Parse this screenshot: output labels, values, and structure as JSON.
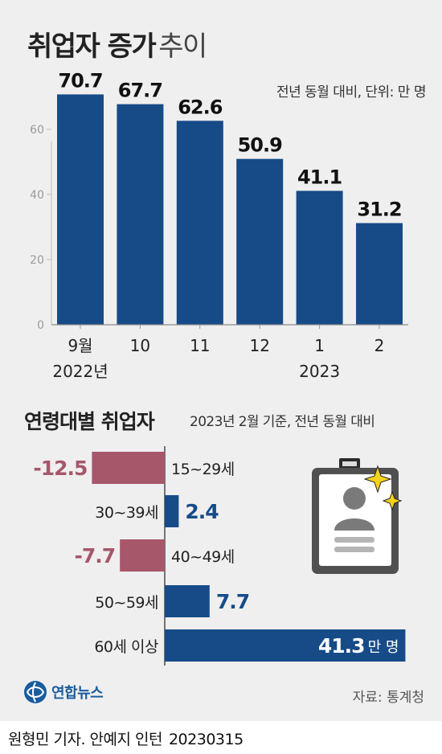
{
  "header": {
    "title_bold": "취업자 증가",
    "title_light": "추이",
    "unit_note": "전년 동월 대비, 단위: 만 명"
  },
  "chart_data": [
    {
      "type": "bar",
      "categories": [
        "9월",
        "10",
        "11",
        "12",
        "1",
        "2"
      ],
      "year_labels": [
        {
          "under": 0,
          "text": "2022년"
        },
        {
          "under": 4,
          "text": "2023"
        }
      ],
      "values": [
        70.7,
        67.7,
        62.6,
        50.9,
        41.1,
        31.2
      ],
      "value_labels": [
        "70.7",
        "67.7",
        "62.6",
        "50.9",
        "41.1",
        "31.2"
      ],
      "yticks": [
        0,
        20,
        40,
        60
      ],
      "ylim": [
        0,
        75
      ],
      "color": "#174b88",
      "grid": false
    },
    {
      "type": "bar",
      "orientation": "horizontal",
      "title": "연령대별 취업자",
      "subtitle": "2023년 2월 기준, 전년 동월 대비",
      "categories": [
        "15~29세",
        "30~39세",
        "40~49세",
        "50~59세",
        "60세 이상"
      ],
      "values": [
        -12.5,
        2.4,
        -7.7,
        7.7,
        41.3
      ],
      "value_labels": [
        "-12.5",
        "2.4",
        "-7.7",
        "7.7",
        "41.3"
      ],
      "last_unit": "만 명",
      "positive_color": "#174b88",
      "negative_color": "#a6576a"
    }
  ],
  "footer": {
    "source": "자료: 통계청",
    "logo_text": "연합뉴스",
    "byline_names": "원형민 기자. 안예지 인턴",
    "byline_date": "20230315"
  }
}
